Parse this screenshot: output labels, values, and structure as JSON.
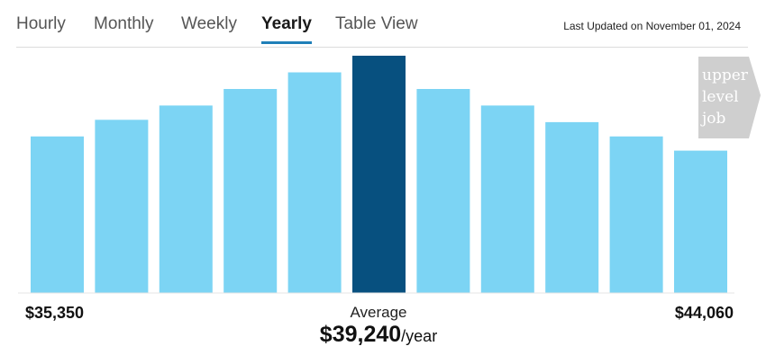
{
  "tabs": [
    {
      "label": "Hourly",
      "active": false
    },
    {
      "label": "Monthly",
      "active": false
    },
    {
      "label": "Weekly",
      "active": false
    },
    {
      "label": "Yearly",
      "active": true
    },
    {
      "label": "Table View",
      "active": false
    }
  ],
  "last_updated": "Last Updated on November 01, 2024",
  "summary": {
    "min": "$35,350",
    "max": "$44,060",
    "average_label": "Average",
    "average_value": "$39,240",
    "average_unit": "/year"
  },
  "badge": {
    "lines": [
      "upper",
      "level",
      "job"
    ]
  },
  "colors": {
    "bar": "#7cd4f4",
    "highlight": "#07507f",
    "badge": "#cfcfcf",
    "tab_accent": "#1f7fb8"
  },
  "chart_data": {
    "type": "bar",
    "values": [
      66,
      73,
      79,
      86,
      93,
      100,
      86,
      79,
      72,
      66,
      60
    ],
    "highlight_index": 5,
    "ylim": [
      0,
      100
    ],
    "grid": false,
    "axis_labels_shown": false
  }
}
